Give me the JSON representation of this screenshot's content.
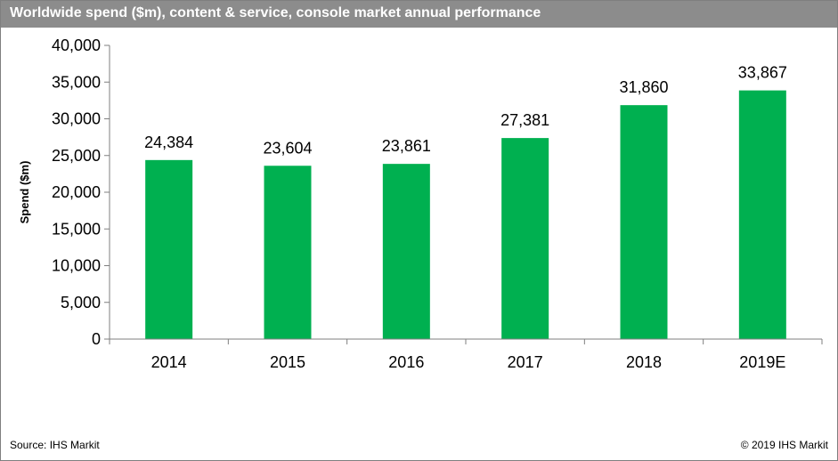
{
  "chart_data": {
    "type": "bar",
    "title": "Worldwide spend ($m), content & service, console market annual performance",
    "xlabel": "",
    "ylabel": "Spend ($m)",
    "categories": [
      "2014",
      "2015",
      "2016",
      "2017",
      "2018",
      "2019E"
    ],
    "values": [
      24384,
      23604,
      23861,
      27381,
      31860,
      33867
    ],
    "value_labels": [
      "24,384",
      "23,604",
      "23,861",
      "27,381",
      "31,860",
      "33,867"
    ],
    "ylim": [
      0,
      40000
    ],
    "yticks": [
      0,
      5000,
      10000,
      15000,
      20000,
      25000,
      30000,
      35000,
      40000
    ],
    "ytick_labels": [
      "0",
      "5,000",
      "10,000",
      "15,000",
      "20,000",
      "25,000",
      "30,000",
      "35,000",
      "40,000"
    ],
    "bar_color": "#00b050",
    "grid": false,
    "legend": "none"
  },
  "footer": {
    "source": "Source: IHS Markit",
    "copyright": "© 2019 IHS Markit"
  },
  "colors": {
    "title_bar": "#8c8c8c",
    "axis": "#7f7f7f"
  }
}
